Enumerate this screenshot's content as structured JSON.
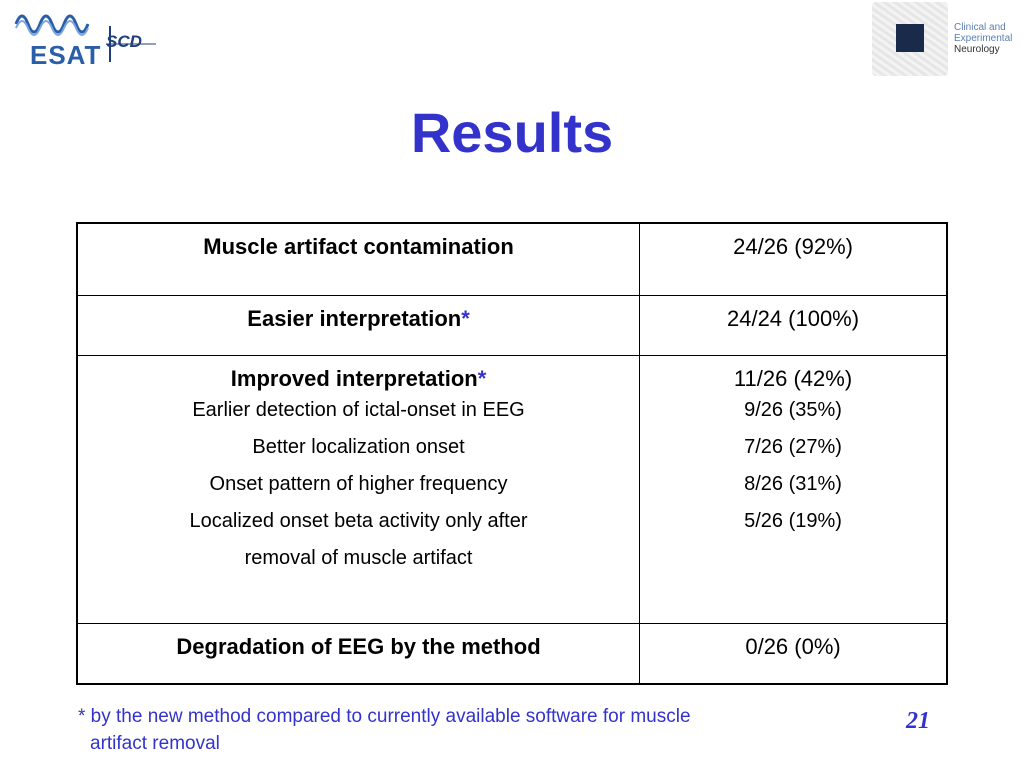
{
  "logos": {
    "esat_text": "ESAT",
    "scd_text": "SCD",
    "cen_line1": "Clinical and",
    "cen_line2": "Experimental",
    "cen_line3": "Neurology"
  },
  "title": "Results",
  "table": {
    "rows": [
      {
        "label": "Muscle artifact contamination",
        "value": "24/26 (92%)"
      },
      {
        "label": "Easier interpretation",
        "star": "*",
        "value": "24/24 (100%)"
      },
      {
        "label": "Improved interpretation",
        "star": "*",
        "value": "11/26 (42%)",
        "subitems": [
          {
            "label": "Earlier detection of ictal-onset in EEG",
            "value": "9/26 (35%)"
          },
          {
            "label": "Better localization onset",
            "value": "7/26 (27%)"
          },
          {
            "label": "Onset pattern of higher frequency",
            "value": "8/26 (31%)"
          },
          {
            "label": "Localized onset beta activity only after",
            "value": "5/26 (19%)"
          },
          {
            "label": "removal of muscle artifact"
          }
        ]
      },
      {
        "label": "Degradation of EEG by the method",
        "value": "0/26 (0%)"
      }
    ]
  },
  "footnote": {
    "line1": "* by the new method compared to currently available software for muscle",
    "line2": "artifact removal"
  },
  "page_number": "21",
  "colors": {
    "title": "#3333cc",
    "border": "#000000"
  }
}
